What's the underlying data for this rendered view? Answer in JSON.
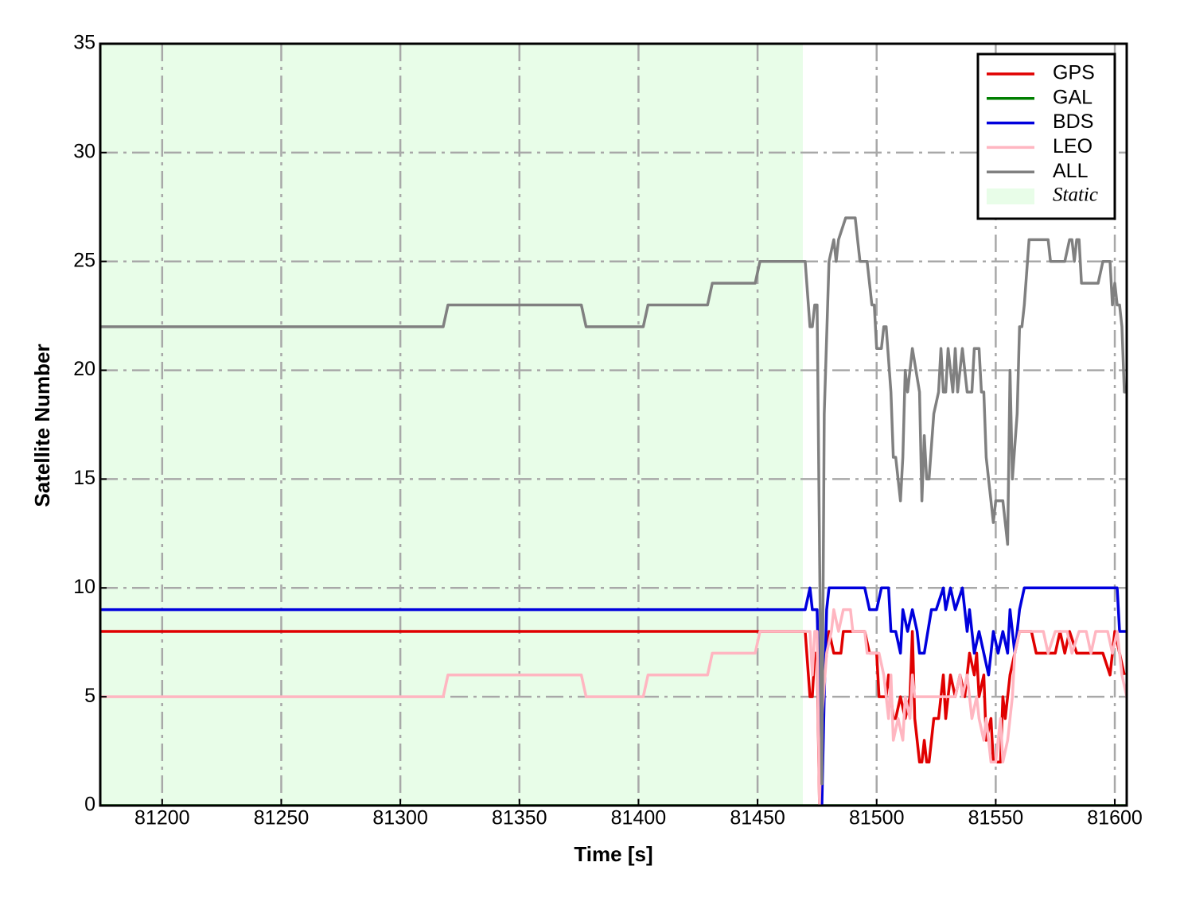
{
  "chart_data": {
    "type": "line",
    "x_label": "Time [s]",
    "y_label": "Satellite Number",
    "xlim": [
      81174,
      81605
    ],
    "ylim": [
      0,
      35
    ],
    "xticks": [
      81200,
      81250,
      81300,
      81350,
      81400,
      81450,
      81500,
      81550,
      81600
    ],
    "yticks": [
      0,
      5,
      10,
      15,
      20,
      25,
      30,
      35
    ],
    "grid": true,
    "legend": "upper right",
    "spans": [
      {
        "name": "Static",
        "x": [
          81174,
          81469
        ],
        "color": "#e8fde8"
      }
    ],
    "series": [
      {
        "name": "GPS",
        "color": "#e00000",
        "x": [
          81174,
          81470,
          81472,
          81473,
          81474,
          81475,
          81476,
          81477,
          81479,
          81480,
          81482,
          81485,
          81486,
          81495,
          81497,
          81500,
          81501,
          81504,
          81505,
          81507,
          81508,
          81510,
          81512,
          81514,
          81515,
          81516,
          81518,
          81519,
          81520,
          81521,
          81522,
          81524,
          81526,
          81528,
          81529,
          81531,
          81533,
          81535,
          81537,
          81539,
          81541,
          81542,
          81543,
          81545,
          81546,
          81548,
          81549,
          81552,
          81553,
          81554,
          81556,
          81558,
          81560,
          81565,
          81567,
          81575,
          81577,
          81579,
          81581,
          81584,
          81595,
          81598,
          81600,
          81602,
          81604
        ],
        "values": [
          8,
          8,
          5,
          5,
          7,
          7,
          0,
          5,
          7,
          8,
          7,
          7,
          8,
          8,
          7,
          7,
          5,
          5,
          6,
          4,
          4,
          5,
          4,
          5,
          8,
          4,
          2,
          2,
          3,
          2,
          2,
          4,
          4,
          6,
          4,
          6,
          5,
          6,
          5,
          7,
          6,
          7,
          5,
          6,
          3,
          4,
          2,
          2,
          5,
          4,
          6,
          7,
          8,
          8,
          7,
          7,
          8,
          7,
          8,
          7,
          7,
          6,
          8,
          7,
          6
        ]
      },
      {
        "name": "GAL",
        "color": "#007f00",
        "x": [
          81174,
          81605
        ],
        "values": [
          0,
          0
        ]
      },
      {
        "name": "BDS",
        "color": "#0000dd",
        "x": [
          81174,
          81470,
          81472,
          81473,
          81475,
          81477,
          81478,
          81479,
          81480,
          81495,
          81497,
          81500,
          81502,
          81505,
          81506,
          81508,
          81510,
          81511,
          81513,
          81515,
          81517,
          81518,
          81520,
          81523,
          81525,
          81528,
          81529,
          81531,
          81533,
          81536,
          81538,
          81539,
          81541,
          81543,
          81545,
          81547,
          81549,
          81551,
          81553,
          81555,
          81556,
          81558,
          81560,
          81562,
          81592,
          81601,
          81602,
          81605
        ],
        "values": [
          9,
          9,
          10,
          9,
          9,
          0,
          5,
          9,
          10,
          10,
          9,
          9,
          10,
          10,
          8,
          8,
          7,
          9,
          8,
          9,
          8,
          7,
          7,
          9,
          9,
          10,
          9,
          10,
          9,
          10,
          8,
          9,
          7,
          8,
          7,
          6,
          8,
          7,
          8,
          7,
          9,
          7,
          9,
          10,
          10,
          10,
          8,
          8
        ]
      },
      {
        "name": "LEO",
        "color": "#ffb6c1",
        "x": [
          81174,
          81318,
          81320,
          81376,
          81378,
          81402,
          81404,
          81429,
          81431,
          81449,
          81451,
          81470,
          81472,
          81473,
          81474,
          81475,
          81476,
          81477,
          81479,
          81481,
          81482,
          81484,
          81486,
          81489,
          81490,
          81492,
          81495,
          81496,
          81499,
          81501,
          81503,
          81505,
          81506,
          81507,
          81509,
          81511,
          81512,
          81514,
          81515,
          81516,
          81518,
          81520,
          81522,
          81526,
          81528,
          81530,
          81533,
          81535,
          81536,
          81538,
          81540,
          81542,
          81543,
          81545,
          81546,
          81547,
          81548,
          81550,
          81552,
          81553,
          81555,
          81557,
          81558,
          81560,
          81570,
          81572,
          81575,
          81580,
          81582,
          81585,
          81588,
          81590,
          81592,
          81597,
          81599,
          81601,
          81603,
          81605
        ],
        "values": [
          5,
          5,
          6,
          6,
          5,
          5,
          6,
          6,
          7,
          7,
          8,
          8,
          8,
          6,
          8,
          8,
          0,
          4,
          7,
          8,
          9,
          8,
          9,
          9,
          8,
          8,
          8,
          7,
          7,
          7,
          6,
          4,
          6,
          3,
          4,
          3,
          5,
          4,
          6,
          5,
          5,
          5,
          5,
          5,
          5,
          5,
          5,
          6,
          5,
          6,
          4,
          5,
          4,
          3,
          4,
          3,
          2,
          2,
          4,
          2,
          3,
          5,
          7,
          8,
          8,
          7,
          8,
          8,
          7,
          8,
          8,
          7,
          8,
          8,
          7,
          8,
          6,
          5
        ]
      },
      {
        "name": "ALL",
        "color": "#808080",
        "x": [
          81174,
          81318,
          81320,
          81376,
          81378,
          81402,
          81404,
          81429,
          81431,
          81449,
          81451,
          81470,
          81472,
          81473,
          81474,
          81475,
          81477,
          81478,
          81480,
          81482,
          81483,
          81484,
          81487,
          81491,
          81493,
          81496,
          81498,
          81499,
          81500,
          81502,
          81503,
          81504,
          81506,
          81507,
          81508,
          81510,
          81511,
          81512,
          81513,
          81515,
          81518,
          81519,
          81520,
          81521,
          81522,
          81524,
          81526,
          81527,
          81528,
          81529,
          81530,
          81532,
          81533,
          81534,
          81536,
          81538,
          81540,
          81541,
          81543,
          81544,
          81545,
          81546,
          81547,
          81548,
          81549,
          81550,
          81553,
          81555,
          81556,
          81557,
          81559,
          81560,
          81561,
          81562,
          81564,
          81572,
          81573,
          81579,
          81581,
          81582,
          81583,
          81584,
          81585,
          81586,
          81593,
          81595,
          81598,
          81599,
          81600,
          81601,
          81602,
          81603,
          81604,
          81605
        ],
        "values": [
          22,
          22,
          23,
          23,
          22,
          22,
          23,
          23,
          24,
          24,
          25,
          25,
          22,
          22,
          23,
          23,
          1,
          18,
          25,
          26,
          25,
          26,
          27,
          27,
          25,
          25,
          23,
          23,
          21,
          21,
          22,
          22,
          19,
          16,
          16,
          14,
          16,
          20,
          19,
          21,
          19,
          14,
          17,
          15,
          15,
          18,
          19,
          21,
          19,
          19,
          21,
          19,
          21,
          19,
          21,
          19,
          19,
          21,
          21,
          19,
          19,
          16,
          15,
          14,
          13,
          14,
          14,
          12,
          20,
          15,
          18,
          22,
          22,
          23,
          26,
          26,
          25,
          25,
          26,
          26,
          25,
          26,
          26,
          24,
          24,
          25,
          25,
          23,
          24,
          23,
          23,
          22,
          19,
          19
        ]
      }
    ]
  }
}
